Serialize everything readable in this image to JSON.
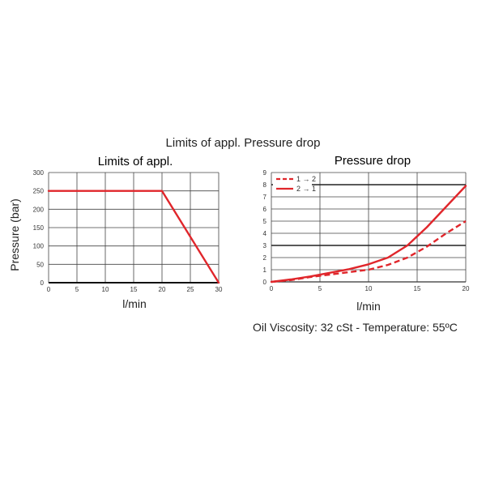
{
  "page": {
    "title": "Limits of appl.  Pressure drop",
    "caption": "Oil Viscosity: 32 cSt - Temperature: 55ºC"
  },
  "chart_data": [
    {
      "type": "line",
      "title": "Limits of appl.",
      "xlabel": "l/min",
      "ylabel": "Pressure (bar)",
      "xlim": [
        0,
        30
      ],
      "ylim": [
        0,
        300
      ],
      "x_ticks": [
        "0",
        "5",
        "10",
        "15",
        "20",
        "25",
        "30"
      ],
      "y_ticks": [
        "0",
        "50",
        "100",
        "150",
        "200",
        "250",
        "300"
      ],
      "grid": true,
      "series": [
        {
          "color": "#e0262b",
          "style": "solid",
          "points": [
            [
              0,
              250
            ],
            [
              20,
              250
            ],
            [
              30,
              0
            ]
          ]
        }
      ]
    },
    {
      "type": "line",
      "title": "Pressure drop",
      "xlabel": "l/min",
      "ylabel": "",
      "xlim": [
        0,
        20
      ],
      "ylim": [
        0,
        9
      ],
      "x_ticks": [
        "0",
        "5",
        "10",
        "15",
        "20"
      ],
      "y_ticks": [
        "0",
        "1",
        "2",
        "3",
        "4",
        "5",
        "6",
        "7",
        "8",
        "9"
      ],
      "grid": true,
      "legend_position": "top-left",
      "series": [
        {
          "name": "1 → 2",
          "color": "#e0262b",
          "style": "dashed",
          "points": [
            [
              0,
              0
            ],
            [
              2,
              0.15
            ],
            [
              4,
              0.4
            ],
            [
              6,
              0.6
            ],
            [
              8,
              0.8
            ],
            [
              10,
              1.0
            ],
            [
              12,
              1.4
            ],
            [
              14,
              2.0
            ],
            [
              16,
              2.9
            ],
            [
              18,
              4.0
            ],
            [
              20,
              5.0
            ]
          ]
        },
        {
          "name": "2 → 1",
          "color": "#e0262b",
          "style": "solid",
          "points": [
            [
              0,
              0
            ],
            [
              2,
              0.2
            ],
            [
              4,
              0.45
            ],
            [
              6,
              0.75
            ],
            [
              8,
              1.05
            ],
            [
              10,
              1.45
            ],
            [
              12,
              2.0
            ],
            [
              14,
              3.0
            ],
            [
              16,
              4.5
            ],
            [
              18,
              6.2
            ],
            [
              20,
              7.9
            ]
          ]
        }
      ]
    }
  ]
}
